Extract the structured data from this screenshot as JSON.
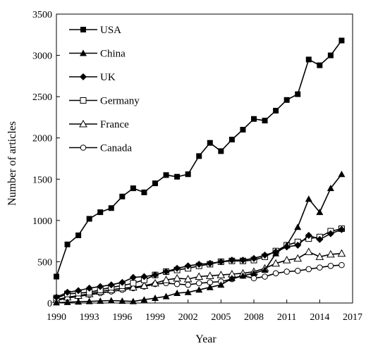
{
  "chart_data": {
    "type": "line",
    "title": "",
    "xlabel": "Year",
    "ylabel": "Number of articles",
    "xlim": [
      1990,
      2017
    ],
    "ylim": [
      0,
      3500
    ],
    "xticks": [
      1990,
      1993,
      1996,
      1999,
      2002,
      2005,
      2008,
      2011,
      2014,
      2017
    ],
    "yticks": [
      0,
      500,
      1000,
      1500,
      2000,
      2500,
      3000,
      3500
    ],
    "grid": false,
    "legend_position": "top-left",
    "x": [
      1990,
      1991,
      1992,
      1993,
      1994,
      1995,
      1996,
      1997,
      1998,
      1999,
      2000,
      2001,
      2002,
      2003,
      2004,
      2005,
      2006,
      2007,
      2008,
      2009,
      2010,
      2011,
      2012,
      2013,
      2014,
      2015,
      2016
    ],
    "series": [
      {
        "name": "USA",
        "marker": "filled-square",
        "values": [
          320,
          710,
          820,
          1020,
          1100,
          1150,
          1290,
          1390,
          1340,
          1450,
          1550,
          1530,
          1560,
          1780,
          1940,
          1840,
          1980,
          2100,
          2230,
          2210,
          2330,
          2460,
          2530,
          2950,
          2880,
          3000,
          3180
        ]
      },
      {
        "name": "China",
        "marker": "filled-triangle",
        "values": [
          5,
          10,
          15,
          20,
          25,
          30,
          25,
          20,
          40,
          60,
          80,
          120,
          130,
          160,
          190,
          220,
          300,
          330,
          360,
          400,
          600,
          700,
          920,
          1260,
          1100,
          1390,
          1560
        ]
      },
      {
        "name": "UK",
        "marker": "filled-diamond",
        "values": [
          70,
          130,
          150,
          180,
          200,
          220,
          250,
          310,
          320,
          340,
          380,
          420,
          450,
          470,
          480,
          500,
          520,
          520,
          540,
          580,
          620,
          680,
          700,
          820,
          770,
          840,
          890
        ]
      },
      {
        "name": "Germany",
        "marker": "open-square",
        "values": [
          60,
          110,
          120,
          130,
          160,
          190,
          210,
          240,
          280,
          340,
          380,
          400,
          420,
          450,
          470,
          500,
          510,
          510,
          520,
          560,
          630,
          700,
          740,
          780,
          800,
          870,
          900
        ]
      },
      {
        "name": "France",
        "marker": "open-triangle",
        "values": [
          40,
          70,
          90,
          110,
          140,
          160,
          180,
          190,
          210,
          240,
          280,
          300,
          290,
          320,
          330,
          340,
          350,
          360,
          380,
          420,
          480,
          520,
          540,
          620,
          560,
          590,
          600
        ]
      },
      {
        "name": "Canada",
        "marker": "open-circle",
        "values": [
          30,
          60,
          80,
          100,
          120,
          140,
          160,
          180,
          200,
          230,
          240,
          230,
          220,
          240,
          250,
          260,
          290,
          330,
          300,
          320,
          360,
          380,
          390,
          410,
          430,
          450,
          460
        ]
      }
    ]
  }
}
